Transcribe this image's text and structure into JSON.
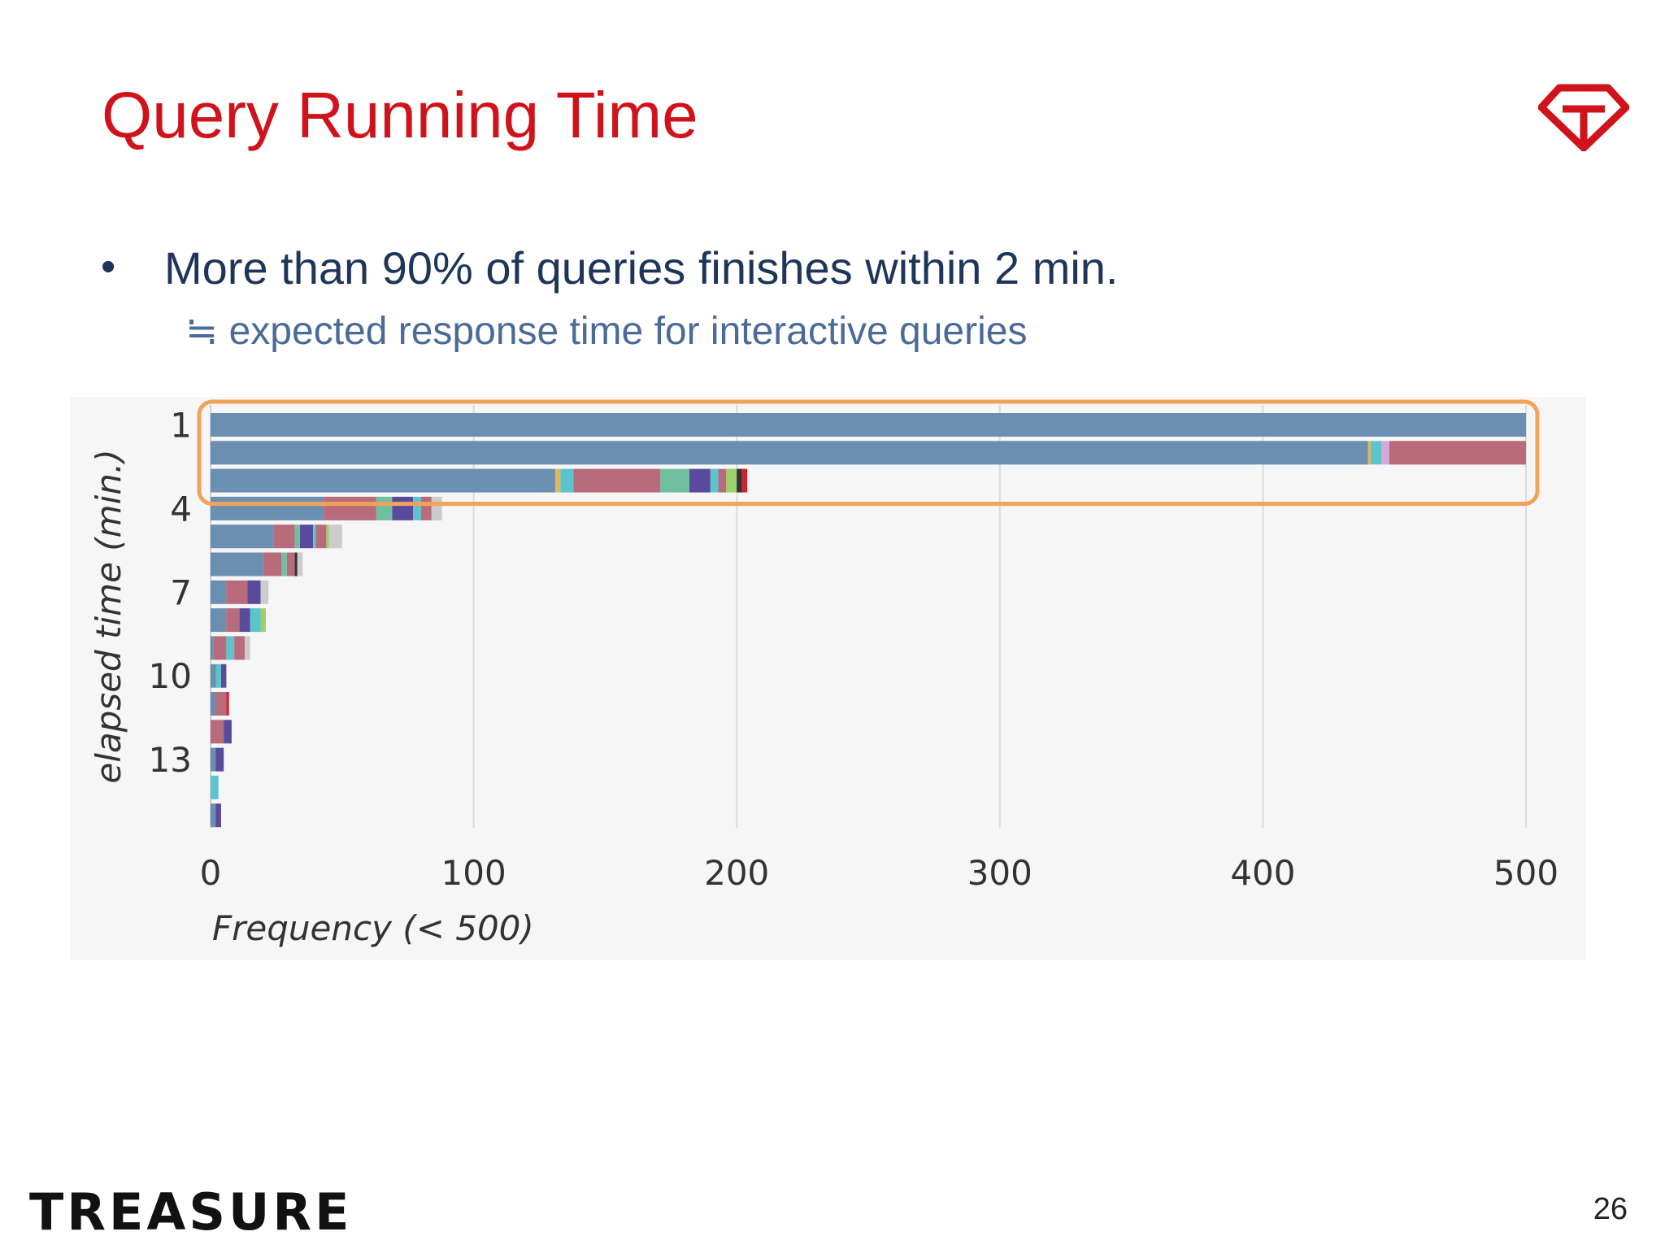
{
  "slide": {
    "title": "Query Running Time",
    "bullet": "More than 90% of queries finishes within 2 min.",
    "sub_bullet": "≒ expected response time for interactive queries",
    "footer_brand": "TREASURE",
    "page_number": "26",
    "title_color": "#d0121b",
    "logo_icon": "diamond-t-logo-icon"
  },
  "chart_data": {
    "type": "bar",
    "orientation": "horizontal",
    "stacked": true,
    "xlabel": "Frequency (< 500)",
    "ylabel": "elapsed time (min.)",
    "xlim": [
      0,
      500
    ],
    "x_ticks": [
      "0",
      "100",
      "200",
      "300",
      "400",
      "500"
    ],
    "y_ticks": [
      "1",
      "4",
      "7",
      "10",
      "13"
    ],
    "grid": true,
    "highlight": {
      "rows": [
        0,
        1,
        2
      ],
      "color": "#f2a35a"
    },
    "bars": [
      {
        "segments": [
          [
            "#6b8fb0",
            500
          ]
        ]
      },
      {
        "segments": [
          [
            "#6b8fb0",
            440
          ],
          [
            "#e3b55c",
            1
          ],
          [
            "#5bc4cc",
            4
          ],
          [
            "#d8a8d8",
            3
          ],
          [
            "#b86b7a",
            52
          ]
        ]
      },
      {
        "segments": [
          [
            "#6b8fb0",
            131
          ],
          [
            "#e3b55c",
            2
          ],
          [
            "#5bc4cc",
            5
          ],
          [
            "#b86b7a",
            33
          ],
          [
            "#6fc0a0",
            11
          ],
          [
            "#5a4a9c",
            8
          ],
          [
            "#5bc4cc",
            3
          ],
          [
            "#b86b7a",
            3
          ],
          [
            "#9bd06b",
            4
          ],
          [
            "#333333",
            2
          ],
          [
            "#d02030",
            2
          ]
        ]
      },
      {
        "segments": [
          [
            "#6b8fb0",
            43
          ],
          [
            "#b86b7a",
            20
          ],
          [
            "#6fc0a0",
            6
          ],
          [
            "#5a4a9c",
            8
          ],
          [
            "#5bc4cc",
            3
          ],
          [
            "#b86b7a",
            4
          ],
          [
            "#cccccc",
            4
          ]
        ]
      },
      {
        "segments": [
          [
            "#6b8fb0",
            24
          ],
          [
            "#b86b7a",
            8
          ],
          [
            "#6fc0a0",
            2
          ],
          [
            "#5a4a9c",
            5
          ],
          [
            "#5bc4cc",
            1
          ],
          [
            "#b86b7a",
            4
          ],
          [
            "#9bd06b",
            1
          ],
          [
            "#cccccc",
            5
          ]
        ]
      },
      {
        "segments": [
          [
            "#6b8fb0",
            20
          ],
          [
            "#b86b7a",
            7
          ],
          [
            "#6fc0a0",
            2
          ],
          [
            "#b86b7a",
            3
          ],
          [
            "#333333",
            1
          ],
          [
            "#cccccc",
            2
          ]
        ]
      },
      {
        "segments": [
          [
            "#6b8fb0",
            6
          ],
          [
            "#b86b7a",
            8
          ],
          [
            "#5a4a9c",
            5
          ],
          [
            "#cccccc",
            3
          ]
        ]
      },
      {
        "segments": [
          [
            "#6b8fb0",
            6
          ],
          [
            "#b86b7a",
            5
          ],
          [
            "#5a4a9c",
            4
          ],
          [
            "#5bc4cc",
            4
          ],
          [
            "#9bd06b",
            2
          ]
        ]
      },
      {
        "segments": [
          [
            "#6b8fb0",
            1
          ],
          [
            "#b86b7a",
            5
          ],
          [
            "#5bc4cc",
            3
          ],
          [
            "#b86b7a",
            4
          ],
          [
            "#cccccc",
            2
          ]
        ]
      },
      {
        "segments": [
          [
            "#6b8fb0",
            2
          ],
          [
            "#5bc4cc",
            2
          ],
          [
            "#5a4a9c",
            2
          ]
        ]
      },
      {
        "segments": [
          [
            "#6b8fb0",
            2
          ],
          [
            "#b86b7a",
            4
          ],
          [
            "#d02030",
            1
          ]
        ]
      },
      {
        "segments": [
          [
            "#b86b7a",
            5
          ],
          [
            "#5a4a9c",
            3
          ]
        ]
      },
      {
        "segments": [
          [
            "#6b8fb0",
            2
          ],
          [
            "#5a4a9c",
            3
          ]
        ]
      },
      {
        "segments": [
          [
            "#5bc4cc",
            3
          ]
        ]
      },
      {
        "segments": [
          [
            "#6b8fb0",
            2
          ],
          [
            "#5a4a9c",
            2
          ]
        ]
      }
    ]
  }
}
